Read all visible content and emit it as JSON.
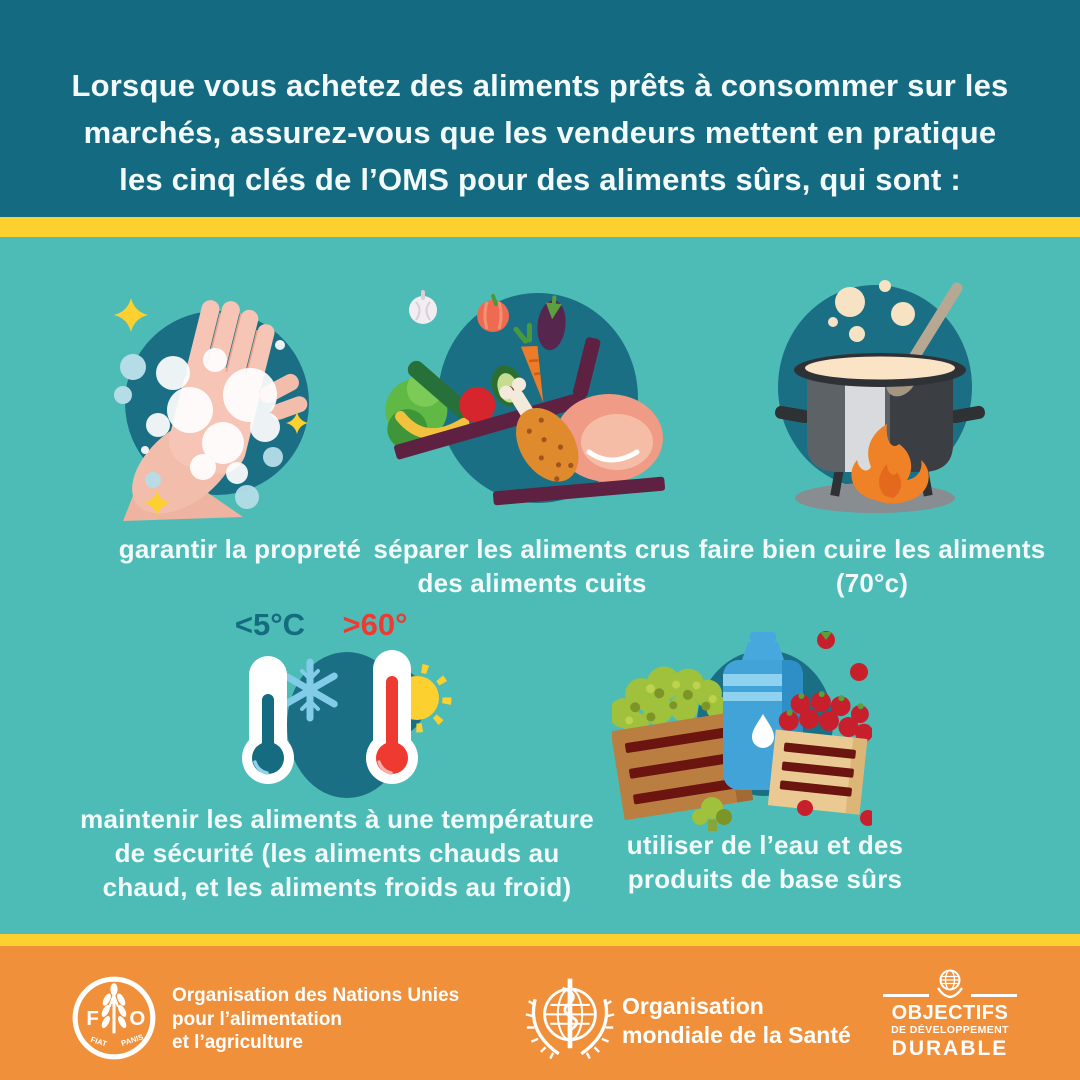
{
  "colors": {
    "header_bg": "#146a80",
    "band_yellow": "#fcd02f",
    "main_bg": "#4ebcb6",
    "footer_bg": "#f0903a",
    "blob": "#1b6f85",
    "text_light": "#f2fafa",
    "cold": "#156b80",
    "hot": "#ee3a31"
  },
  "header": {
    "lines": [
      "Lorsque vous achetez des aliments prêts à consommer sur les",
      "marchés, assurez-vous que les vendeurs mettent en pratique",
      "les cinq clés de l’OMS pour des aliments sûrs, qui sont :"
    ]
  },
  "items": [
    {
      "icon": "washing-hands",
      "caption_lines": [
        "garantir la propreté"
      ]
    },
    {
      "icon": "raw-vs-cooked-trays",
      "caption_lines": [
        "séparer les aliments crus",
        "des aliments cuits"
      ]
    },
    {
      "icon": "cooking-pot",
      "caption_lines": [
        "faire bien cuire les aliments",
        "(70°c)"
      ]
    },
    {
      "icon": "thermometers",
      "cold_label": "<5°C",
      "hot_label": ">60°",
      "caption_lines": [
        "maintenir les aliments à une température",
        "de sécurité (les aliments chauds au",
        "chaud, et les aliments froids au froid)"
      ]
    },
    {
      "icon": "safe-water-and-produce",
      "caption_lines": [
        "utiliser de l’eau et des",
        "produits de base sûrs"
      ]
    }
  ],
  "footer": {
    "fao": {
      "letter_f": "F",
      "letter_a": "A",
      "letter_o": "O",
      "motto_left": "FIAT",
      "motto_right": "PANIS",
      "name_lines": [
        "Organisation des Nations Unies",
        "pour l’alimentation",
        "et l’agriculture"
      ]
    },
    "who": {
      "name_lines": [
        "Organisation",
        "mondiale de la Santé"
      ]
    },
    "sdg": {
      "line1": "OBJECTIFS",
      "line2": "DE DÉVELOPPEMENT",
      "line3": "DURABLE"
    }
  }
}
